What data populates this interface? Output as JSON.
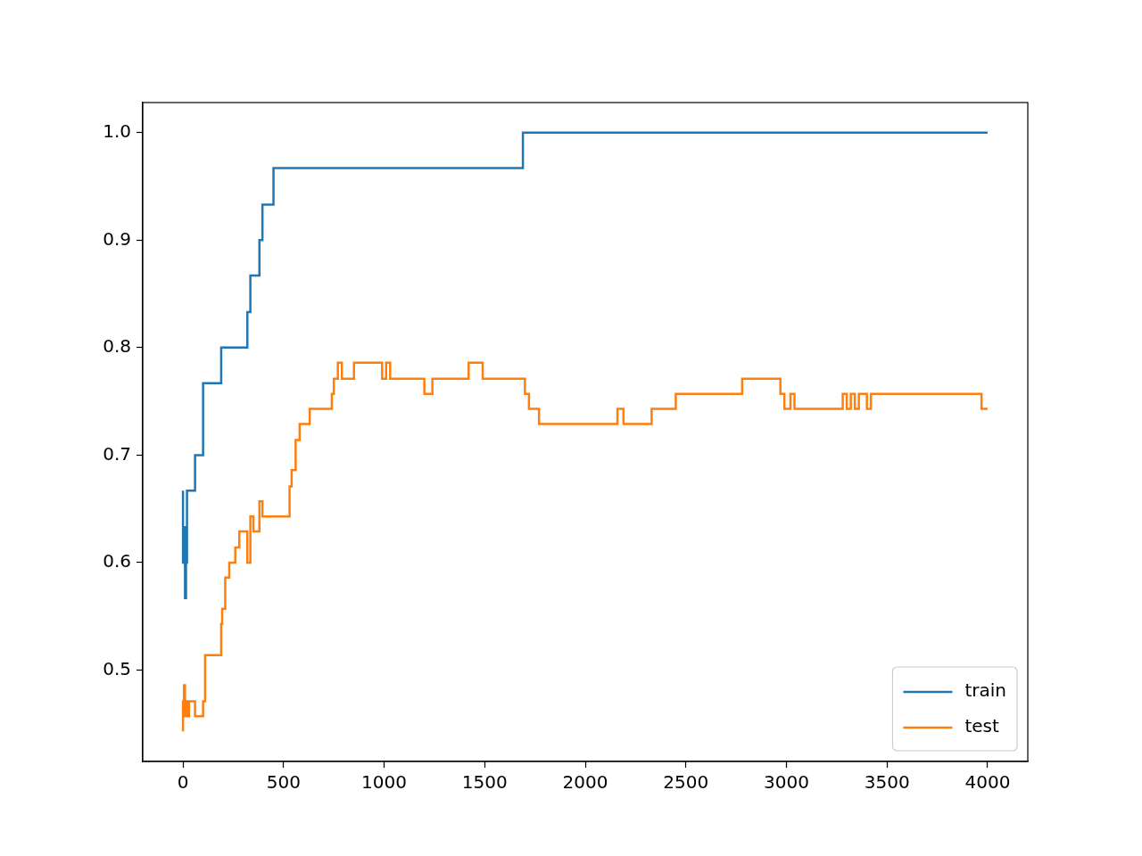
{
  "chart_data": {
    "type": "line",
    "x": [
      0,
      5,
      10,
      15,
      20,
      30,
      60,
      65,
      100,
      110,
      120,
      190,
      195,
      210,
      230,
      260,
      280,
      320,
      335,
      350,
      380,
      395,
      450,
      470,
      530,
      540,
      560,
      580,
      630,
      650,
      740,
      750,
      770,
      790,
      850,
      990,
      1010,
      1030,
      1200,
      1240,
      1420,
      1490,
      1550,
      1690,
      1700,
      1720,
      1770,
      2160,
      2190,
      2330,
      2450,
      2780,
      2970,
      2990,
      3020,
      3040,
      3280,
      3300,
      3320,
      3340,
      3360,
      3400,
      3420,
      3440,
      3970,
      3980,
      4000
    ],
    "series": [
      {
        "name": "train",
        "color": "#1f77b4",
        "line_style": "steps",
        "values": [
          0.667,
          0.6,
          0.633,
          0.567,
          0.6,
          0.667,
          0.667,
          0.7,
          0.7,
          0.767,
          0.767,
          0.767,
          0.8,
          0.8,
          0.8,
          0.8,
          0.8,
          0.8,
          0.833,
          0.867,
          0.867,
          0.9,
          0.933,
          0.967,
          0.967,
          0.967,
          0.967,
          0.967,
          0.967,
          0.967,
          0.967,
          0.967,
          0.967,
          0.967,
          0.967,
          0.967,
          0.967,
          0.967,
          0.967,
          0.967,
          0.967,
          0.967,
          0.967,
          0.967,
          1.0,
          1.0,
          1.0,
          1.0,
          1.0,
          1.0,
          1.0,
          1.0,
          1.0,
          1.0,
          1.0,
          1.0,
          1.0,
          1.0,
          1.0,
          1.0,
          1.0,
          1.0,
          1.0,
          1.0,
          1.0,
          1.0,
          1.0
        ]
      },
      {
        "name": "test",
        "color": "#ff7f0e",
        "line_style": "steps",
        "values": [
          0.443,
          0.471,
          0.486,
          0.457,
          0.471,
          0.457,
          0.471,
          0.457,
          0.457,
          0.471,
          0.514,
          0.514,
          0.543,
          0.557,
          0.586,
          0.6,
          0.614,
          0.629,
          0.6,
          0.643,
          0.629,
          0.657,
          0.643,
          0.643,
          0.643,
          0.671,
          0.686,
          0.714,
          0.729,
          0.743,
          0.743,
          0.757,
          0.771,
          0.786,
          0.771,
          0.786,
          0.771,
          0.786,
          0.771,
          0.757,
          0.771,
          0.786,
          0.771,
          0.771,
          0.771,
          0.757,
          0.743,
          0.729,
          0.743,
          0.729,
          0.743,
          0.757,
          0.771,
          0.757,
          0.743,
          0.757,
          0.743,
          0.757,
          0.743,
          0.757,
          0.743,
          0.757,
          0.743,
          0.757,
          0.757,
          0.743,
          0.743
        ]
      }
    ],
    "xlim": [
      -200,
      4200
    ],
    "xticks": [
      0,
      500,
      1000,
      1500,
      2000,
      2500,
      3000,
      3500,
      4000
    ],
    "ylim": [
      0.415,
      1.028
    ],
    "yticks": [
      0.5,
      0.6,
      0.7,
      0.8,
      0.9,
      {
        "value": 1,
        "label": "1.0"
      }
    ],
    "grid": false,
    "legend": "lower right"
  }
}
